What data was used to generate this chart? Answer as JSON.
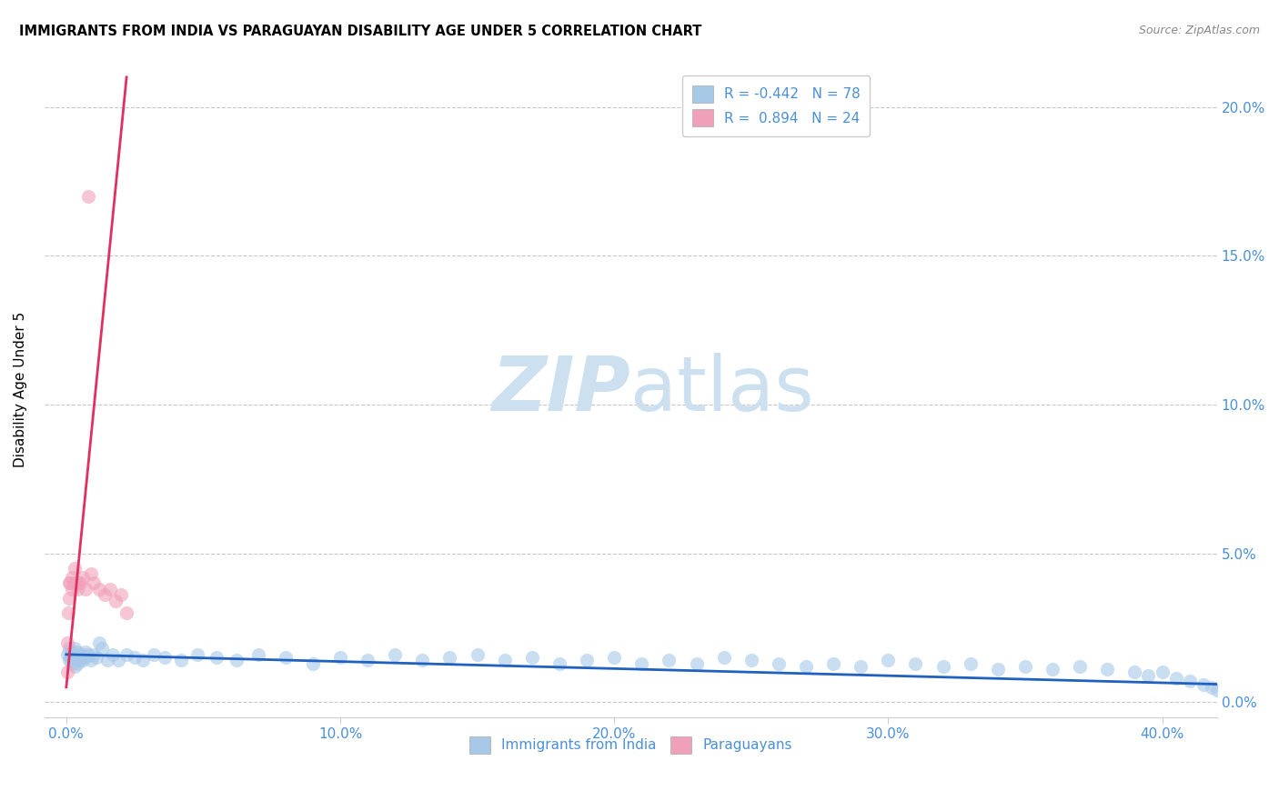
{
  "title": "IMMIGRANTS FROM INDIA VS PARAGUAYAN DISABILITY AGE UNDER 5 CORRELATION CHART",
  "source": "Source: ZipAtlas.com",
  "ylabel": "Disability Age Under 5",
  "legend_bottom": [
    "Immigrants from India",
    "Paraguayans"
  ],
  "blue_R": -0.442,
  "blue_N": 78,
  "pink_R": 0.894,
  "pink_N": 24,
  "blue_color": "#a8c8e8",
  "pink_color": "#f0a0b8",
  "blue_line_color": "#2060c0",
  "pink_line_color": "#e03060",
  "watermark_color": "#cce0f0",
  "xlim_max": 0.42,
  "ylim_max": 0.215,
  "x_tick_vals": [
    0.0,
    0.1,
    0.2,
    0.3,
    0.4
  ],
  "y_tick_vals": [
    0.0,
    0.05,
    0.1,
    0.15,
    0.2
  ],
  "blue_x": [
    0.0005,
    0.001,
    0.001,
    0.0015,
    0.002,
    0.002,
    0.002,
    0.003,
    0.003,
    0.003,
    0.004,
    0.004,
    0.004,
    0.005,
    0.005,
    0.005,
    0.006,
    0.006,
    0.007,
    0.007,
    0.008,
    0.009,
    0.01,
    0.011,
    0.012,
    0.013,
    0.015,
    0.017,
    0.019,
    0.022,
    0.025,
    0.028,
    0.032,
    0.036,
    0.042,
    0.048,
    0.055,
    0.062,
    0.07,
    0.08,
    0.09,
    0.1,
    0.11,
    0.12,
    0.13,
    0.14,
    0.15,
    0.16,
    0.17,
    0.18,
    0.19,
    0.2,
    0.21,
    0.22,
    0.23,
    0.24,
    0.25,
    0.26,
    0.27,
    0.28,
    0.29,
    0.3,
    0.31,
    0.32,
    0.33,
    0.34,
    0.35,
    0.36,
    0.37,
    0.38,
    0.39,
    0.395,
    0.4,
    0.405,
    0.41,
    0.415,
    0.418,
    0.42
  ],
  "blue_y": [
    0.016,
    0.018,
    0.014,
    0.015,
    0.017,
    0.013,
    0.015,
    0.016,
    0.012,
    0.018,
    0.015,
    0.013,
    0.017,
    0.014,
    0.016,
    0.015,
    0.016,
    0.014,
    0.015,
    0.017,
    0.016,
    0.014,
    0.016,
    0.015,
    0.02,
    0.018,
    0.014,
    0.016,
    0.014,
    0.016,
    0.015,
    0.014,
    0.016,
    0.015,
    0.014,
    0.016,
    0.015,
    0.014,
    0.016,
    0.015,
    0.013,
    0.015,
    0.014,
    0.016,
    0.014,
    0.015,
    0.016,
    0.014,
    0.015,
    0.013,
    0.014,
    0.015,
    0.013,
    0.014,
    0.013,
    0.015,
    0.014,
    0.013,
    0.012,
    0.013,
    0.012,
    0.014,
    0.013,
    0.012,
    0.013,
    0.011,
    0.012,
    0.011,
    0.012,
    0.011,
    0.01,
    0.009,
    0.01,
    0.008,
    0.007,
    0.006,
    0.005,
    0.004
  ],
  "pink_x": [
    0.0003,
    0.0005,
    0.0008,
    0.001,
    0.001,
    0.0015,
    0.002,
    0.002,
    0.003,
    0.003,
    0.004,
    0.004,
    0.005,
    0.006,
    0.007,
    0.008,
    0.009,
    0.01,
    0.012,
    0.014,
    0.016,
    0.018,
    0.02,
    0.022
  ],
  "pink_y": [
    0.01,
    0.02,
    0.03,
    0.035,
    0.04,
    0.04,
    0.038,
    0.042,
    0.04,
    0.045,
    0.04,
    0.038,
    0.04,
    0.042,
    0.038,
    0.17,
    0.043,
    0.04,
    0.038,
    0.036,
    0.038,
    0.034,
    0.036,
    0.03
  ],
  "blue_line_x": [
    0.0,
    0.42
  ],
  "blue_line_y": [
    0.016,
    0.006
  ],
  "pink_line_x": [
    0.0,
    0.022
  ],
  "pink_line_y": [
    0.005,
    0.21
  ]
}
